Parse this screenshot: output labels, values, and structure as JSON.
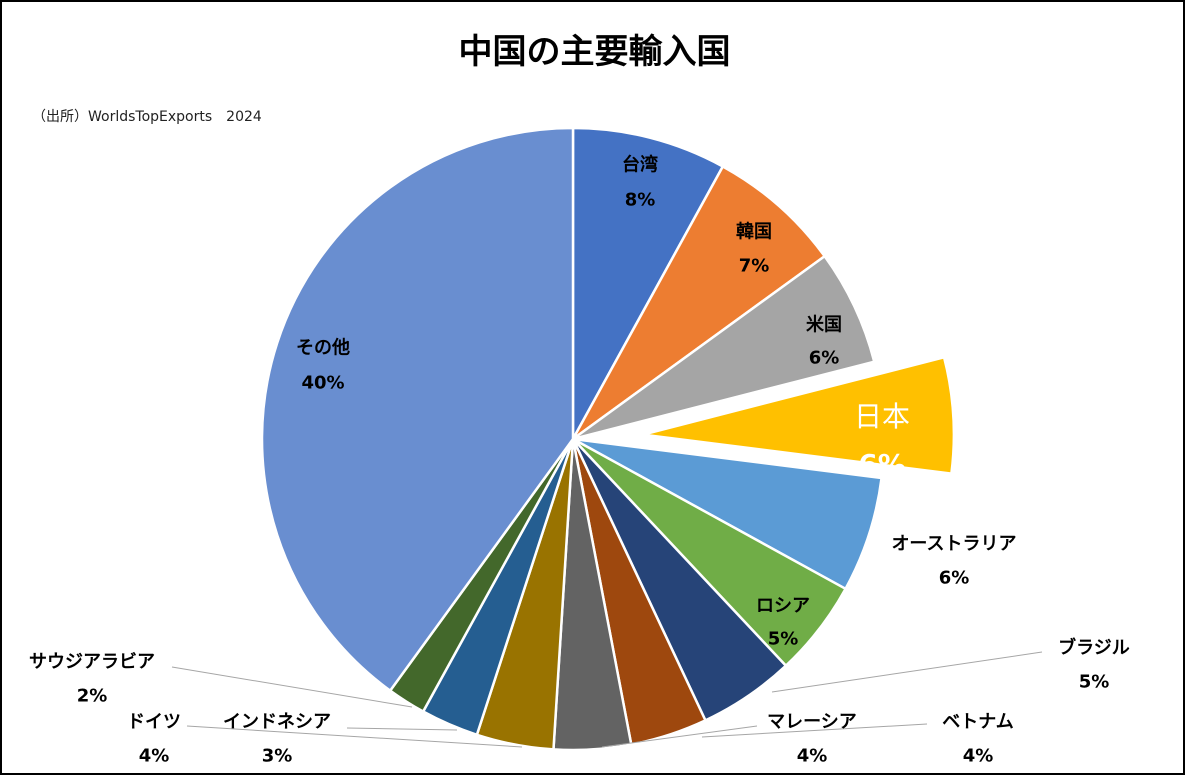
{
  "chart_data": {
    "type": "pie",
    "title": "中国の主要輸入国",
    "subtitle": "（出所）WorldsTopExports　2024",
    "categories": [
      "台湾",
      "韓国",
      "米国",
      "日本",
      "オーストラリア",
      "ロシア",
      "ブラジル",
      "ベトナム",
      "マレーシア",
      "ドイツ",
      "インドネシア",
      "サウジアラビア",
      "その他"
    ],
    "values": [
      8,
      7,
      6,
      6,
      6,
      5,
      5,
      4,
      4,
      4,
      3,
      2,
      40
    ],
    "value_labels": [
      "8%",
      "7%",
      "6%",
      "6%",
      "6%",
      "5%",
      "5%",
      "4%",
      "4%",
      "4%",
      "3%",
      "2%",
      "40%"
    ],
    "colors": [
      "#4472C4",
      "#ED7D31",
      "#A5A5A5",
      "#FFC000",
      "#5B9BD5",
      "#70AD47",
      "#264478",
      "#9E480E",
      "#636363",
      "#997300",
      "#255E91",
      "#43682B",
      "#698ED0"
    ],
    "exploded": [
      "日本"
    ],
    "unit": "%"
  }
}
